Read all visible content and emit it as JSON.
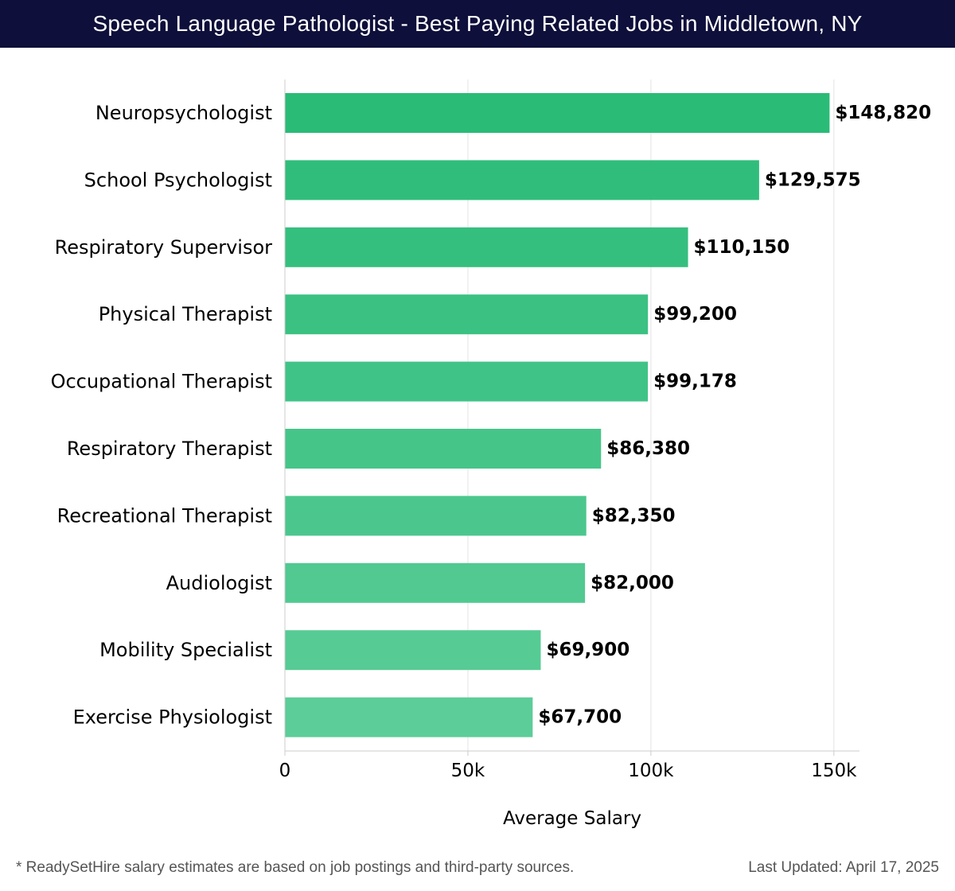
{
  "header": {
    "title": "Speech Language Pathologist - Best Paying Related Jobs in Middletown, NY"
  },
  "chart_data": {
    "type": "bar",
    "orientation": "horizontal",
    "title": "Speech Language Pathologist - Best Paying Related Jobs in Middletown, NY",
    "xlabel": "Average Salary",
    "ylabel": "",
    "categories": [
      "Neuropsychologist",
      "School Psychologist",
      "Respiratory Supervisor",
      "Physical Therapist",
      "Occupational Therapist",
      "Respiratory Therapist",
      "Recreational Therapist",
      "Audiologist",
      "Mobility Specialist",
      "Exercise Physiologist"
    ],
    "values": [
      148820,
      129575,
      110150,
      99200,
      99178,
      86380,
      82350,
      82000,
      69900,
      67700
    ],
    "value_labels": [
      "$148,820",
      "$129,575",
      "$110,150",
      "$99,200",
      "$99,178",
      "$86,380",
      "$82,350",
      "$82,000",
      "$69,900",
      "$67,700"
    ],
    "xlim": [
      0,
      157000
    ],
    "x_ticks": [
      0,
      50000,
      100000,
      150000
    ],
    "x_tick_labels": [
      "0",
      "50k",
      "100k",
      "150k"
    ],
    "grid": true,
    "legend": "none",
    "colors": {
      "bar_top": "#2abb77",
      "bar_bottom": "#5ccd98",
      "grid": "#e3e3e3",
      "axis": "#cccccc",
      "text": "#000000"
    }
  },
  "footer": {
    "note": "* ReadySetHire salary estimates are based on job postings and third-party sources.",
    "updated": "Last Updated: April 17, 2025"
  }
}
